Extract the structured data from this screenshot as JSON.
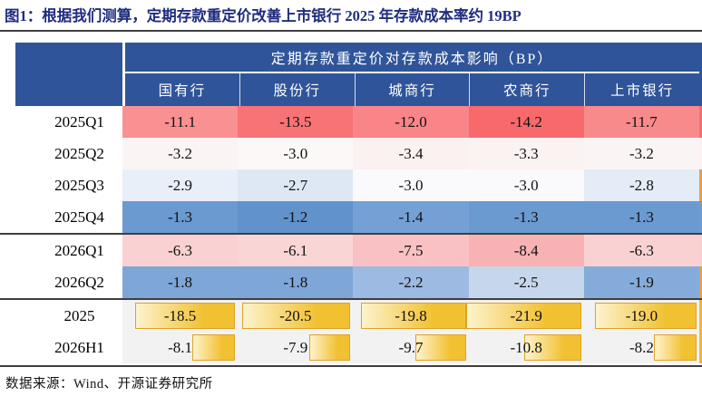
{
  "figure": {
    "title": "图1：根据我们测算，定期存款重定价改善上市银行 2025 年存款成本率约 19BP",
    "source": "数据来源：Wind、开源证券研究所"
  },
  "table": {
    "merged_header": "定期存款重定价对存款成本影响（BP）",
    "columns": [
      "国有行",
      "股份行",
      "城商行",
      "农商行",
      "上市银行"
    ],
    "rows": [
      {
        "label": "2025Q1",
        "type": "scale",
        "separator_above": false,
        "edge": "#F3706E",
        "cells": [
          {
            "text": "-11.1",
            "bg": "#F99193"
          },
          {
            "text": "-13.5",
            "bg": "#F87375"
          },
          {
            "text": "-12.0",
            "bg": "#F98588"
          },
          {
            "text": "-14.2",
            "bg": "#F8696B"
          },
          {
            "text": "-11.7",
            "bg": "#F98A8C"
          }
        ]
      },
      {
        "label": "2025Q2",
        "type": "scale",
        "separator_above": false,
        "edge": "#FBF1F0",
        "cells": [
          {
            "text": "-3.2",
            "bg": "#FBF4F4"
          },
          {
            "text": "-3.0",
            "bg": "#FCF8F8"
          },
          {
            "text": "-3.4",
            "bg": "#FBF1F0"
          },
          {
            "text": "-3.3",
            "bg": "#FBF2F2"
          },
          {
            "text": "-3.2",
            "bg": "#FBF4F4"
          }
        ]
      },
      {
        "label": "2025Q3",
        "type": "scale",
        "separator_above": false,
        "edge": "#E89F45",
        "cells": [
          {
            "text": "-2.9",
            "bg": "#E9EFF9"
          },
          {
            "text": "-2.7",
            "bg": "#DEE8F5"
          },
          {
            "text": "-3.0",
            "bg": "#FAFAFD"
          },
          {
            "text": "-3.0",
            "bg": "#FAFAFD"
          },
          {
            "text": "-2.8",
            "bg": "#E4ECF7"
          }
        ]
      },
      {
        "label": "2025Q4",
        "type": "scale",
        "separator_above": false,
        "edge": "#6E9CD2",
        "cells": [
          {
            "text": "-1.3",
            "bg": "#6B9AD1"
          },
          {
            "text": "-1.2",
            "bg": "#6192CB"
          },
          {
            "text": "-1.4",
            "bg": "#74A0D5"
          },
          {
            "text": "-1.3",
            "bg": "#6B9AD1"
          },
          {
            "text": "-1.3",
            "bg": "#6B9AD1"
          }
        ]
      },
      {
        "label": "2026Q1",
        "type": "scale",
        "separator_above": true,
        "edge": "#F8D0D0",
        "cells": [
          {
            "text": "-6.3",
            "bg": "#FAD1D2"
          },
          {
            "text": "-6.1",
            "bg": "#FAD5D6"
          },
          {
            "text": "-7.5",
            "bg": "#F9C1C3"
          },
          {
            "text": "-8.4",
            "bg": "#F8B2B4"
          },
          {
            "text": "-6.3",
            "bg": "#FAD1D2"
          }
        ]
      },
      {
        "label": "2026Q2",
        "type": "scale",
        "separator_above": false,
        "edge": "#E89F45",
        "cells": [
          {
            "text": "-1.8",
            "bg": "#7EA7D8"
          },
          {
            "text": "-1.8",
            "bg": "#7EA7D8"
          },
          {
            "text": "-2.2",
            "bg": "#9CBAE2"
          },
          {
            "text": "-2.5",
            "bg": "#C6D7ED"
          },
          {
            "text": "-1.9",
            "bg": "#85ABDA"
          }
        ]
      },
      {
        "label": "2025",
        "type": "bars",
        "separator_above": true,
        "edge": "#ECB73C",
        "cells": [
          {
            "text": "-18.5",
            "bar": 87
          },
          {
            "text": "-20.5",
            "bar": 94
          },
          {
            "text": "-19.8",
            "bar": 91
          },
          {
            "text": "-21.9",
            "bar": 100
          },
          {
            "text": "-19.0",
            "bar": 88
          }
        ]
      },
      {
        "label": "2026H1",
        "type": "bars",
        "separator_above": false,
        "edge": "#ECB73C",
        "cells": [
          {
            "text": "-8.1",
            "bar": 37
          },
          {
            "text": "-7.9",
            "bar": 36
          },
          {
            "text": "-9.7",
            "bar": 44
          },
          {
            "text": "-10.8",
            "bar": 49
          },
          {
            "text": "-8.2",
            "bar": 37
          }
        ]
      }
    ]
  },
  "colors": {
    "header_bg": "#2F5499",
    "header_text": "#FFFFFF",
    "title_text": "#1F2D7F",
    "rule": "#3E3E3E",
    "bar_row_bg": "#F2F2F2",
    "bar_border": "#DFA126",
    "bar_gradient_start": "#FDF3CD",
    "bar_gradient_end": "#F2C132"
  },
  "chart_data": {
    "type": "table",
    "title": "定期存款重定价对存款成本影响（BP）",
    "figure_title": "图1：根据我们测算，定期存款重定价改善上市银行 2025 年存款成本率约 19BP",
    "columns": [
      "国有行",
      "股份行",
      "城商行",
      "农商行",
      "上市银行"
    ],
    "row_labels": [
      "2025Q1",
      "2025Q2",
      "2025Q3",
      "2025Q4",
      "2026Q1",
      "2026Q2",
      "2025",
      "2026H1"
    ],
    "values": [
      [
        -11.1,
        -13.5,
        -12.0,
        -14.2,
        -11.7
      ],
      [
        -3.2,
        -3.0,
        -3.4,
        -3.3,
        -3.2
      ],
      [
        -2.9,
        -2.7,
        -3.0,
        -3.0,
        -2.8
      ],
      [
        -1.3,
        -1.2,
        -1.4,
        -1.3,
        -1.3
      ],
      [
        -6.3,
        -6.1,
        -7.5,
        -8.4,
        -6.3
      ],
      [
        -1.8,
        -1.8,
        -2.2,
        -2.5,
        -1.9
      ],
      [
        -18.5,
        -20.5,
        -19.8,
        -21.9,
        -19.0
      ],
      [
        -8.1,
        -7.9,
        -9.7,
        -10.8,
        -8.2
      ]
    ],
    "unit": "BP",
    "formatting_note": "quarterly rows use red-white-blue color scale; annual rows (2025, 2026H1) use gold data bars on gray background",
    "source": "数据来源：Wind、开源证券研究所"
  }
}
